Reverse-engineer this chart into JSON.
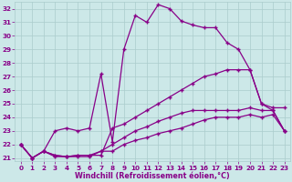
{
  "xlabel": "Windchill (Refroidissement éolien,°C)",
  "xlim_min": -0.5,
  "xlim_max": 23.5,
  "ylim_min": 20.75,
  "ylim_max": 32.5,
  "yticks": [
    21,
    22,
    23,
    24,
    25,
    26,
    27,
    28,
    29,
    30,
    31,
    32
  ],
  "xticks": [
    0,
    1,
    2,
    3,
    4,
    5,
    6,
    7,
    8,
    9,
    10,
    11,
    12,
    13,
    14,
    15,
    16,
    17,
    18,
    19,
    20,
    21,
    22,
    23
  ],
  "bg_color": "#cce8e8",
  "grid_color": "#aacccc",
  "line_color": "#880088",
  "curve1_x": [
    0,
    1,
    2,
    3,
    4,
    5,
    6,
    7,
    8,
    9,
    10,
    11,
    12,
    13,
    14,
    15,
    16,
    17,
    18,
    19,
    20,
    21,
    22,
    23
  ],
  "curve1_y": [
    22.0,
    21.0,
    21.5,
    23.0,
    23.2,
    23.0,
    23.2,
    27.2,
    22.2,
    29.0,
    31.5,
    31.0,
    32.3,
    32.0,
    31.1,
    30.8,
    30.6,
    30.6,
    29.5,
    29.0,
    27.5,
    25.0,
    24.7,
    24.7
  ],
  "curve2_x": [
    0,
    1,
    2,
    3,
    4,
    5,
    6,
    7,
    8,
    9,
    10,
    11,
    12,
    13,
    14,
    15,
    16,
    17,
    18,
    19,
    20,
    21,
    22,
    23
  ],
  "curve2_y": [
    22.0,
    21.0,
    21.5,
    21.2,
    21.1,
    21.2,
    21.2,
    21.2,
    23.2,
    23.5,
    24.0,
    24.5,
    25.0,
    25.5,
    26.0,
    26.5,
    27.0,
    27.2,
    27.5,
    27.5,
    27.5,
    25.0,
    24.5,
    23.0
  ],
  "curve3_x": [
    0,
    1,
    2,
    3,
    4,
    5,
    6,
    7,
    8,
    9,
    10,
    11,
    12,
    13,
    14,
    15,
    16,
    17,
    18,
    19,
    20,
    21,
    22,
    23
  ],
  "curve3_y": [
    22.0,
    21.0,
    21.5,
    21.2,
    21.1,
    21.2,
    21.2,
    21.5,
    22.0,
    22.5,
    23.0,
    23.3,
    23.7,
    24.0,
    24.3,
    24.5,
    24.5,
    24.5,
    24.5,
    24.5,
    24.7,
    24.5,
    24.5,
    23.0
  ],
  "curve4_x": [
    0,
    1,
    2,
    3,
    4,
    5,
    6,
    7,
    8,
    9,
    10,
    11,
    12,
    13,
    14,
    15,
    16,
    17,
    18,
    19,
    20,
    21,
    22,
    23
  ],
  "curve4_y": [
    22.0,
    21.0,
    21.5,
    21.1,
    21.1,
    21.1,
    21.1,
    21.5,
    21.5,
    22.0,
    22.3,
    22.5,
    22.8,
    23.0,
    23.2,
    23.5,
    23.8,
    24.0,
    24.0,
    24.0,
    24.2,
    24.0,
    24.2,
    23.0
  ],
  "lw": 0.9,
  "ms": 3.5,
  "mew": 1.0,
  "tick_fontsize": 5.2,
  "xlabel_fontsize": 5.8
}
